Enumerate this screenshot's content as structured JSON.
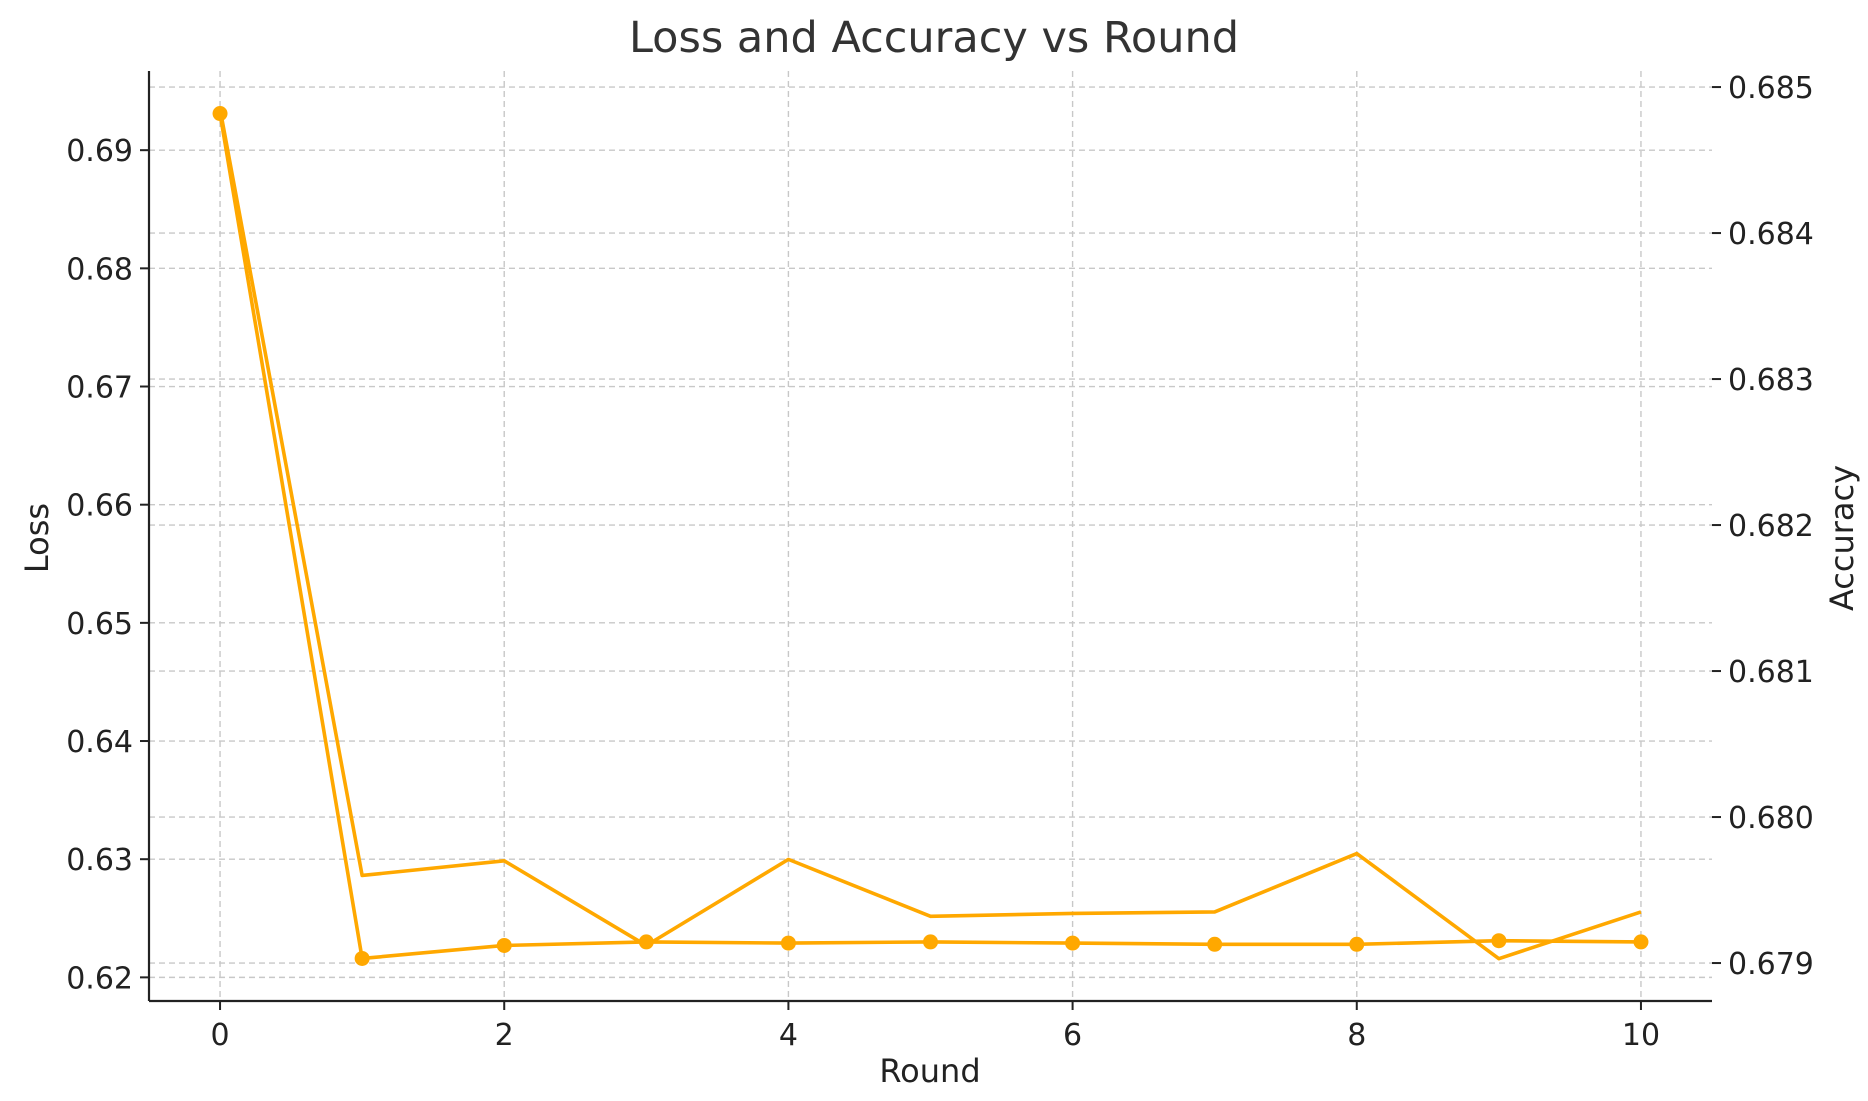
{
  "chart_data": {
    "type": "line",
    "title": "Loss and Accuracy vs Round",
    "xlabel": "Round",
    "ylabel_left": "Loss",
    "ylabel_right": "Accuracy",
    "grid": true,
    "color": "#FFA800",
    "x": [
      0,
      1,
      2,
      3,
      4,
      5,
      6,
      7,
      8,
      9,
      10
    ],
    "xlim": [
      -0.5,
      10.5
    ],
    "x_ticks": [
      0,
      2,
      4,
      6,
      8,
      10
    ],
    "x_tick_labels": [
      "0",
      "2",
      "4",
      "6",
      "8",
      "10"
    ],
    "ylim_left": [
      0.618,
      0.6967
    ],
    "y_ticks_left": [
      0.62,
      0.63,
      0.64,
      0.65,
      0.66,
      0.67,
      0.68,
      0.69
    ],
    "y_tick_labels_left": [
      "0.62",
      "0.63",
      "0.64",
      "0.65",
      "0.66",
      "0.67",
      "0.68",
      "0.69"
    ],
    "ylim_right": [
      0.67874,
      0.68511
    ],
    "y_ticks_right": [
      0.679,
      0.68,
      0.681,
      0.682,
      0.683,
      0.684,
      0.685
    ],
    "y_tick_labels_right": [
      "0.679",
      "0.680",
      "0.681",
      "0.682",
      "0.683",
      "0.684",
      "0.685"
    ],
    "series": [
      {
        "name": "Loss",
        "axis": "left",
        "marker": "circle",
        "values": [
          0.6931,
          0.6216,
          0.6227,
          0.623,
          0.6229,
          0.623,
          0.6229,
          0.6228,
          0.6228,
          0.6231,
          0.623
        ]
      },
      {
        "name": "Accuracy",
        "axis": "right",
        "marker": "none",
        "values": [
          0.68485,
          0.6796,
          0.6797,
          0.67912,
          0.67971,
          0.67932,
          0.67934,
          0.67935,
          0.67975,
          0.67903,
          0.67935
        ]
      }
    ]
  }
}
